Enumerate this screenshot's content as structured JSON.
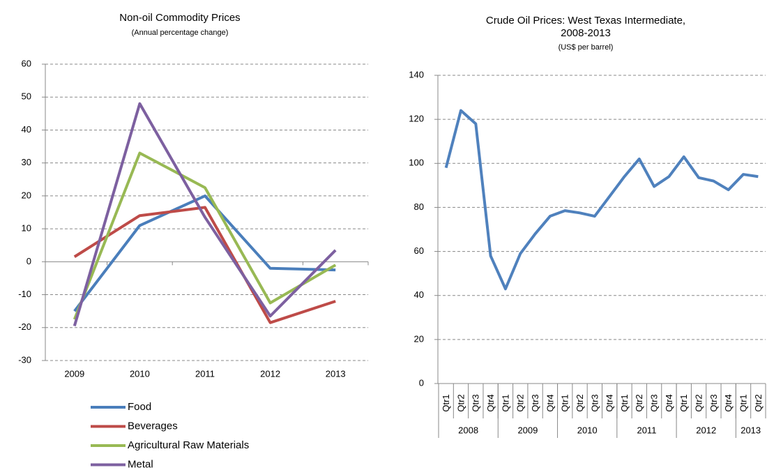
{
  "chart_data": [
    {
      "type": "line",
      "title": "Non-oil Commodity Prices",
      "subtitle": "(Annual percentage change)",
      "categories": [
        "2009",
        "2010",
        "2011",
        "2012",
        "2013"
      ],
      "series": [
        {
          "name": "Food",
          "color": "#4a7ebb",
          "values": [
            -15,
            11,
            20,
            -2,
            -2.5
          ]
        },
        {
          "name": "Beverages",
          "color": "#be4b48",
          "values": [
            1.5,
            14,
            16.5,
            -18.5,
            -12
          ]
        },
        {
          "name": "Agricultural Raw Materials",
          "color": "#98b954",
          "values": [
            -17.5,
            33,
            22.5,
            -12.5,
            -1
          ]
        },
        {
          "name": "Metal",
          "color": "#7d60a0",
          "values": [
            -19.5,
            48,
            13.5,
            -16.5,
            3.5
          ]
        }
      ],
      "ylim": [
        -30,
        60
      ],
      "yticks": [
        -30,
        -20,
        -10,
        0,
        10,
        20,
        30,
        40,
        50,
        60
      ],
      "grid": true,
      "legend": "bottom"
    },
    {
      "type": "line",
      "title": [
        "Crude Oil Prices: West Texas Intermediate,",
        "2008-2013"
      ],
      "subtitle": "(US$ per barrel)",
      "category_groups": [
        {
          "label": "2008",
          "categories": [
            "Qtr1",
            "Qtr2",
            "Qtr3",
            "Qtr4"
          ]
        },
        {
          "label": "2009",
          "categories": [
            "Qtr1",
            "Qtr2",
            "Qtr3",
            "Qtr4"
          ]
        },
        {
          "label": "2010",
          "categories": [
            "Qtr1",
            "Qtr2",
            "Qtr3",
            "Qtr4"
          ]
        },
        {
          "label": "2011",
          "categories": [
            "Qtr1",
            "Qtr2",
            "Qtr3",
            "Qtr4"
          ]
        },
        {
          "label": "2012",
          "categories": [
            "Qtr1",
            "Qtr2",
            "Qtr3",
            "Qtr4"
          ]
        },
        {
          "label": "2013",
          "categories": [
            "Qtr1",
            "Qtr2"
          ]
        }
      ],
      "color": "#4f81bd",
      "values": [
        98,
        124,
        118,
        58,
        43,
        59,
        68,
        76,
        78.5,
        77.5,
        76,
        85,
        94,
        102,
        89.5,
        94,
        103,
        93.5,
        92,
        88,
        95,
        94
      ],
      "ylim": [
        0,
        140
      ],
      "yticks": [
        0,
        20,
        40,
        60,
        80,
        100,
        120,
        140
      ],
      "grid": true
    }
  ]
}
